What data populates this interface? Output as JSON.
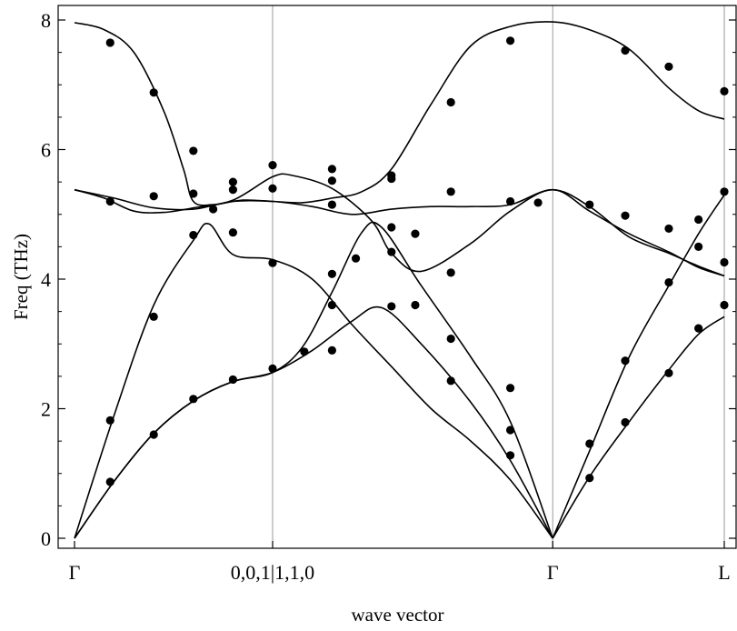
{
  "chart_data": {
    "type": "line",
    "title": "",
    "xlabel": "wave vector",
    "ylabel": "Freq (THz)",
    "ylim": [
      0,
      8
    ],
    "y_ticks": [
      "0",
      "2",
      "4",
      "6",
      "8"
    ],
    "x_ticks": [
      {
        "pos": 0.0,
        "label": "Γ"
      },
      {
        "pos": 1.0,
        "label": "0,0,1|1,1,0"
      },
      {
        "pos": 2.414,
        "label": "Γ"
      },
      {
        "pos": 3.28,
        "label": "L"
      }
    ],
    "grid": "vertical lines at high-symmetry points",
    "series": [
      {
        "points": [
          [
            0,
            0
          ],
          [
            0.2,
            0.88
          ],
          [
            0.4,
            1.62
          ],
          [
            0.6,
            2.12
          ],
          [
            0.8,
            2.42
          ],
          [
            1.0,
            2.56
          ],
          [
            1.2,
            2.9
          ],
          [
            1.4,
            3.35
          ],
          [
            1.55,
            3.56
          ],
          [
            1.75,
            3.0
          ],
          [
            2.0,
            2.1
          ],
          [
            2.2,
            1.2
          ],
          [
            2.414,
            0
          ]
        ]
      },
      {
        "points": [
          [
            0,
            0
          ],
          [
            0.2,
            0.88
          ],
          [
            0.4,
            1.62
          ],
          [
            0.6,
            2.12
          ],
          [
            0.8,
            2.42
          ],
          [
            1.0,
            2.56
          ],
          [
            1.15,
            2.95
          ],
          [
            1.3,
            3.8
          ],
          [
            1.45,
            4.72
          ],
          [
            1.55,
            4.8
          ],
          [
            1.75,
            3.9
          ],
          [
            2.0,
            2.8
          ],
          [
            2.2,
            1.8
          ],
          [
            2.414,
            0
          ]
        ]
      },
      {
        "points": [
          [
            0,
            0
          ],
          [
            0.2,
            1.9
          ],
          [
            0.4,
            3.6
          ],
          [
            0.6,
            4.6
          ],
          [
            0.68,
            4.85
          ],
          [
            0.8,
            4.38
          ],
          [
            1.0,
            4.3
          ],
          [
            1.2,
            4.0
          ],
          [
            1.4,
            3.3
          ],
          [
            1.6,
            2.65
          ],
          [
            1.8,
            2.0
          ],
          [
            2.0,
            1.5
          ],
          [
            2.2,
            0.9
          ],
          [
            2.414,
            0
          ]
        ]
      },
      {
        "points": [
          [
            0,
            7.96
          ],
          [
            0.15,
            7.85
          ],
          [
            0.3,
            7.5
          ],
          [
            0.45,
            6.6
          ],
          [
            0.55,
            5.7
          ],
          [
            0.6,
            5.2
          ],
          [
            0.7,
            5.15
          ],
          [
            0.85,
            5.22
          ],
          [
            1.0,
            5.2
          ],
          [
            1.15,
            5.18
          ],
          [
            1.3,
            5.25
          ],
          [
            1.45,
            5.35
          ],
          [
            1.6,
            5.7
          ],
          [
            1.8,
            6.7
          ],
          [
            2.0,
            7.6
          ],
          [
            2.2,
            7.9
          ],
          [
            2.414,
            7.97
          ],
          [
            2.6,
            7.85
          ],
          [
            2.8,
            7.55
          ],
          [
            3.0,
            6.95
          ],
          [
            3.15,
            6.6
          ],
          [
            3.28,
            6.47
          ]
        ]
      },
      {
        "points": [
          [
            0,
            5.38
          ],
          [
            0.15,
            5.25
          ],
          [
            0.3,
            5.05
          ],
          [
            0.45,
            5.03
          ],
          [
            0.6,
            5.1
          ],
          [
            0.8,
            5.22
          ],
          [
            1.0,
            5.58
          ],
          [
            1.1,
            5.6
          ],
          [
            1.3,
            5.4
          ],
          [
            1.5,
            4.9
          ],
          [
            1.6,
            4.4
          ],
          [
            1.75,
            4.12
          ],
          [
            2.0,
            4.55
          ],
          [
            2.2,
            5.05
          ],
          [
            2.414,
            5.38
          ],
          [
            2.6,
            5.05
          ],
          [
            2.8,
            4.7
          ],
          [
            3.0,
            4.42
          ],
          [
            3.15,
            4.18
          ],
          [
            3.28,
            4.05
          ]
        ]
      },
      {
        "points": [
          [
            0,
            5.38
          ],
          [
            0.2,
            5.25
          ],
          [
            0.4,
            5.1
          ],
          [
            0.6,
            5.08
          ],
          [
            0.8,
            5.2
          ],
          [
            1.0,
            5.2
          ],
          [
            1.2,
            5.12
          ],
          [
            1.4,
            5.0
          ],
          [
            1.6,
            5.08
          ],
          [
            1.8,
            5.12
          ],
          [
            2.0,
            5.12
          ],
          [
            2.2,
            5.15
          ],
          [
            2.414,
            5.38
          ],
          [
            2.6,
            5.12
          ],
          [
            2.8,
            4.65
          ],
          [
            3.0,
            4.4
          ],
          [
            3.15,
            4.2
          ],
          [
            3.28,
            4.05
          ]
        ]
      },
      {
        "points": [
          [
            2.414,
            0
          ],
          [
            2.6,
            1.35
          ],
          [
            2.8,
            2.8
          ],
          [
            3.0,
            3.9
          ],
          [
            3.15,
            4.7
          ],
          [
            3.28,
            5.3
          ]
        ]
      },
      {
        "points": [
          [
            2.414,
            0
          ],
          [
            2.6,
            0.95
          ],
          [
            2.8,
            1.8
          ],
          [
            3.0,
            2.6
          ],
          [
            3.15,
            3.15
          ],
          [
            3.28,
            3.42
          ]
        ]
      }
    ],
    "markers": [
      [
        0.18,
        0.87
      ],
      [
        0.18,
        1.82
      ],
      [
        0.18,
        5.2
      ],
      [
        0.18,
        7.65
      ],
      [
        0.4,
        1.6
      ],
      [
        0.4,
        3.42
      ],
      [
        0.4,
        5.28
      ],
      [
        0.4,
        6.88
      ],
      [
        0.6,
        2.15
      ],
      [
        0.6,
        4.68
      ],
      [
        0.6,
        5.32
      ],
      [
        0.6,
        5.98
      ],
      [
        0.7,
        5.08
      ],
      [
        0.8,
        2.45
      ],
      [
        0.8,
        4.72
      ],
      [
        0.8,
        5.38
      ],
      [
        0.8,
        5.5
      ],
      [
        1.0,
        2.62
      ],
      [
        1.0,
        4.25
      ],
      [
        1.0,
        5.4
      ],
      [
        1.0,
        5.76
      ],
      [
        1.16,
        2.88
      ],
      [
        1.3,
        2.9
      ],
      [
        1.3,
        3.6
      ],
      [
        1.3,
        4.08
      ],
      [
        1.3,
        5.15
      ],
      [
        1.3,
        5.52
      ],
      [
        1.3,
        5.7
      ],
      [
        1.42,
        4.32
      ],
      [
        1.6,
        3.58
      ],
      [
        1.6,
        4.42
      ],
      [
        1.6,
        4.8
      ],
      [
        1.6,
        5.55
      ],
      [
        1.6,
        5.6
      ],
      [
        1.72,
        3.6
      ],
      [
        1.72,
        4.7
      ],
      [
        1.9,
        2.43
      ],
      [
        1.9,
        3.08
      ],
      [
        1.9,
        4.1
      ],
      [
        1.9,
        5.35
      ],
      [
        1.9,
        6.73
      ],
      [
        2.2,
        1.28
      ],
      [
        2.2,
        1.67
      ],
      [
        2.2,
        2.32
      ],
      [
        2.2,
        5.2
      ],
      [
        2.2,
        7.68
      ],
      [
        2.34,
        5.18
      ],
      [
        2.6,
        0.93
      ],
      [
        2.6,
        1.46
      ],
      [
        2.6,
        5.15
      ],
      [
        2.78,
        1.79
      ],
      [
        2.78,
        2.74
      ],
      [
        2.78,
        4.98
      ],
      [
        2.78,
        7.53
      ],
      [
        3.0,
        2.55
      ],
      [
        3.0,
        3.95
      ],
      [
        3.0,
        4.78
      ],
      [
        3.0,
        7.28
      ],
      [
        3.15,
        3.24
      ],
      [
        3.15,
        4.5
      ],
      [
        3.15,
        4.92
      ],
      [
        3.28,
        3.6
      ],
      [
        3.28,
        4.26
      ],
      [
        3.28,
        5.35
      ],
      [
        3.28,
        6.9
      ]
    ]
  }
}
